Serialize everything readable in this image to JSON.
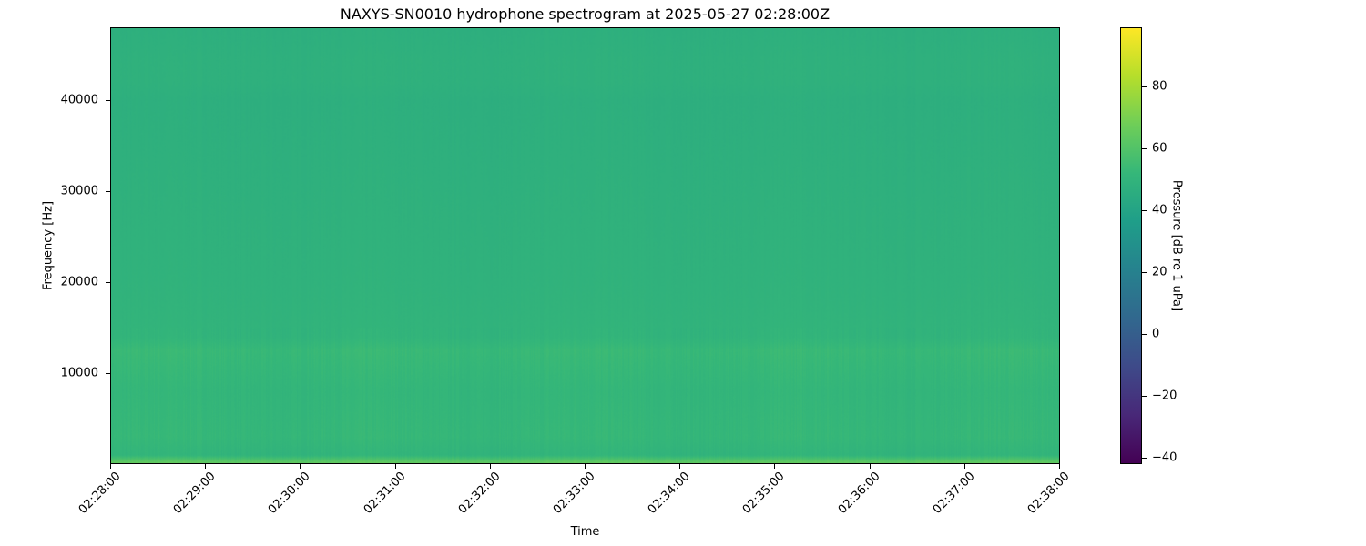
{
  "chart_data": {
    "type": "heatmap",
    "title": "NAXYS-SN0010 hydrophone spectrogram at 2025-05-27 02:28:00Z",
    "xlabel": "Time",
    "ylabel": "Frequency [Hz]",
    "colorbar_label": "Pressure [dB re 1 uPa]",
    "colormap": "viridis",
    "xticks": [
      "02:28:00",
      "02:29:00",
      "02:30:00",
      "02:31:00",
      "02:32:00",
      "02:33:00",
      "02:34:00",
      "02:35:00",
      "02:36:00",
      "02:37:00",
      "02:38:00"
    ],
    "yticks": [
      10000,
      20000,
      30000,
      40000
    ],
    "ylim": [
      0,
      48000
    ],
    "clim": [
      -42,
      99
    ],
    "cticks": [
      -40,
      -20,
      0,
      20,
      40,
      60,
      80
    ],
    "frequency_profile": [
      {
        "freq": 0,
        "level": 65
      },
      {
        "freq": 300,
        "level": 62
      },
      {
        "freq": 1000,
        "level": 50
      },
      {
        "freq": 3000,
        "level": 52
      },
      {
        "freq": 8000,
        "level": 51
      },
      {
        "freq": 12500,
        "level": 53
      },
      {
        "freq": 14000,
        "level": 50
      },
      {
        "freq": 20000,
        "level": 49
      },
      {
        "freq": 30000,
        "level": 48
      },
      {
        "freq": 40000,
        "level": 47
      },
      {
        "freq": 42000,
        "level": 48
      },
      {
        "freq": 44500,
        "level": 48
      },
      {
        "freq": 48000,
        "level": 47
      }
    ]
  }
}
